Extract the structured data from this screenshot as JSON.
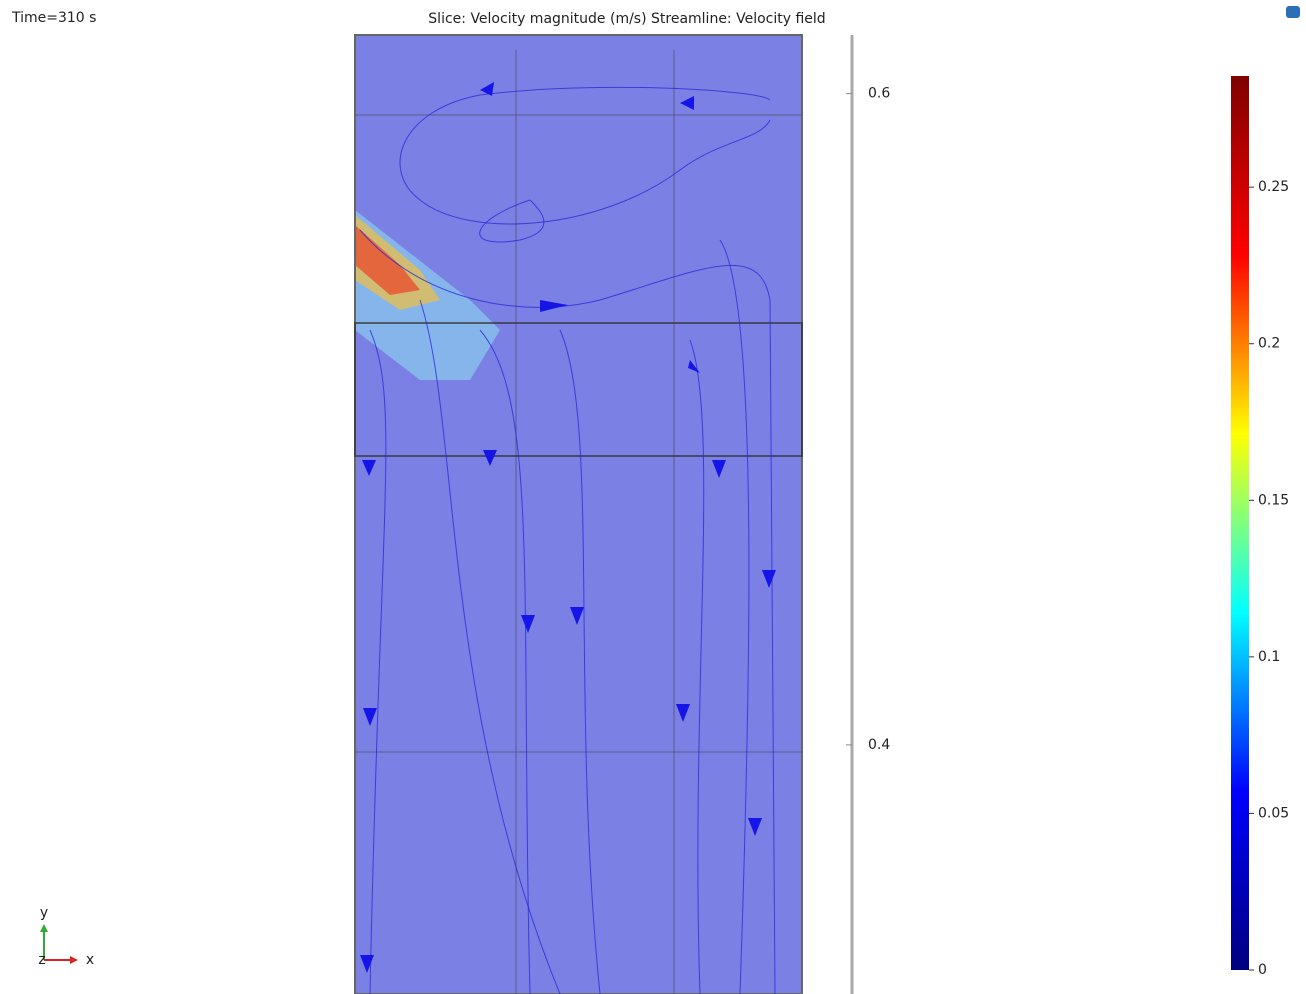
{
  "chart_data": {
    "type": "field",
    "time_label": "Time=310 s",
    "title": "Slice: Velocity magnitude (m/s)  Streamline: Velocity field",
    "ylim": [
      0.3235,
      0.618
    ],
    "yticks": [
      0.4,
      0.6
    ],
    "colorbar": {
      "lim": [
        0,
        0.2855
      ],
      "ticks": [
        0,
        0.05,
        0.1,
        0.15,
        0.2,
        0.25
      ],
      "colors": [
        "#00007f",
        "#0000ff",
        "#00ffff",
        "#ffff00",
        "#ff0000",
        "#7f0000"
      ]
    },
    "axes_triad": {
      "y": "y",
      "z": "z",
      "x": "x"
    }
  }
}
